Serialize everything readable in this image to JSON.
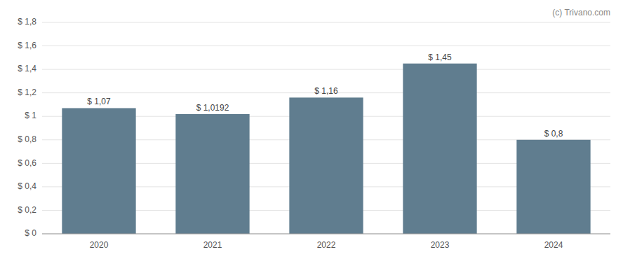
{
  "chart_data": {
    "type": "bar",
    "categories": [
      "2020",
      "2021",
      "2022",
      "2023",
      "2024"
    ],
    "values": [
      1.07,
      1.0192,
      1.16,
      1.45,
      0.8
    ],
    "value_labels": [
      "$ 1,07",
      "$ 1,0192",
      "$ 1,16",
      "$ 1,45",
      "$ 0,8"
    ],
    "data_labels": true,
    "color": "#607d8f",
    "ylim": [
      0,
      1.8
    ],
    "yticks": [
      {
        "value": 0,
        "label": "$ 0"
      },
      {
        "value": 0.2,
        "label": "$ 0,2"
      },
      {
        "value": 0.4,
        "label": "$ 0,4"
      },
      {
        "value": 0.6,
        "label": "$ 0,6"
      },
      {
        "value": 0.8,
        "label": "$ 0,8"
      },
      {
        "value": 1.0,
        "label": "$ 1"
      },
      {
        "value": 1.2,
        "label": "$ 1,2"
      },
      {
        "value": 1.4,
        "label": "$ 1,4"
      },
      {
        "value": 1.6,
        "label": "$ 1,6"
      },
      {
        "value": 1.8,
        "label": "$ 1,8"
      }
    ],
    "grid": true,
    "annotations": [
      "(c) Trivano.com"
    ]
  }
}
